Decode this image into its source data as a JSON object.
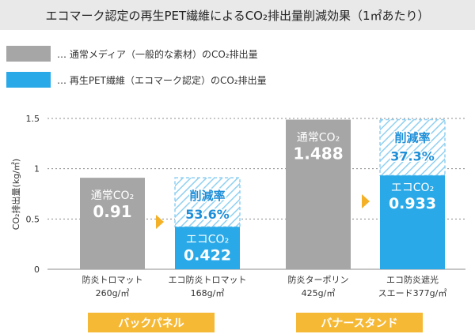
{
  "title": "エコマーク認定の再生PET繊維によるCO₂排出量削減効果（1㎡あたり）",
  "legend": [
    {
      "name": "… 通常メディア（一般的な素材）のCO₂排出量",
      "color": "#a6a6a6"
    },
    {
      "name": "… 再生PET繊維（エコマーク認定）のCO₂排出量",
      "color": "#29a9e8"
    }
  ],
  "colors": {
    "normal": "#a6a6a6",
    "eco": "#29a9e8",
    "eco_label": "#1e8fd8",
    "arrow": "#f4b128",
    "group_bg": "#f6b936",
    "title_bg": "#e9e9e9"
  },
  "chart_data": {
    "type": "bar",
    "ylabel": "CO₂排出量(kg/㎡)",
    "ylim": [
      0,
      1.5
    ],
    "yticks": [
      "0",
      "0.5",
      "1",
      "1.5"
    ],
    "ytick_values": [
      0,
      0.5,
      1,
      1.5
    ],
    "grid": true,
    "groups": [
      {
        "name": "バックパネル",
        "pairs": [
          {
            "normal": {
              "category": "防炎トロマット",
              "spec": "260g/㎡",
              "label": "通常CO₂",
              "value": 0.91,
              "value_text": "0.91"
            },
            "eco": {
              "category": "エコ防炎トロマット",
              "spec": "168g/㎡",
              "label": "エコCO₂",
              "value": 0.422,
              "value_text": "0.422"
            },
            "reduction_label": "削減率",
            "reduction_text": "53.6%"
          }
        ]
      },
      {
        "name": "バナースタンド",
        "pairs": [
          {
            "normal": {
              "category": "防炎ターポリン",
              "spec": "425g/㎡",
              "label": "通常CO₂",
              "value": 1.488,
              "value_text": "1.488"
            },
            "eco": {
              "category": "エコ防炎遮光",
              "spec": "スエード377g/㎡",
              "label": "エコCO₂",
              "value": 0.933,
              "value_text": "0.933"
            },
            "reduction_label": "削減率",
            "reduction_text": "37.3%"
          }
        ]
      }
    ]
  }
}
